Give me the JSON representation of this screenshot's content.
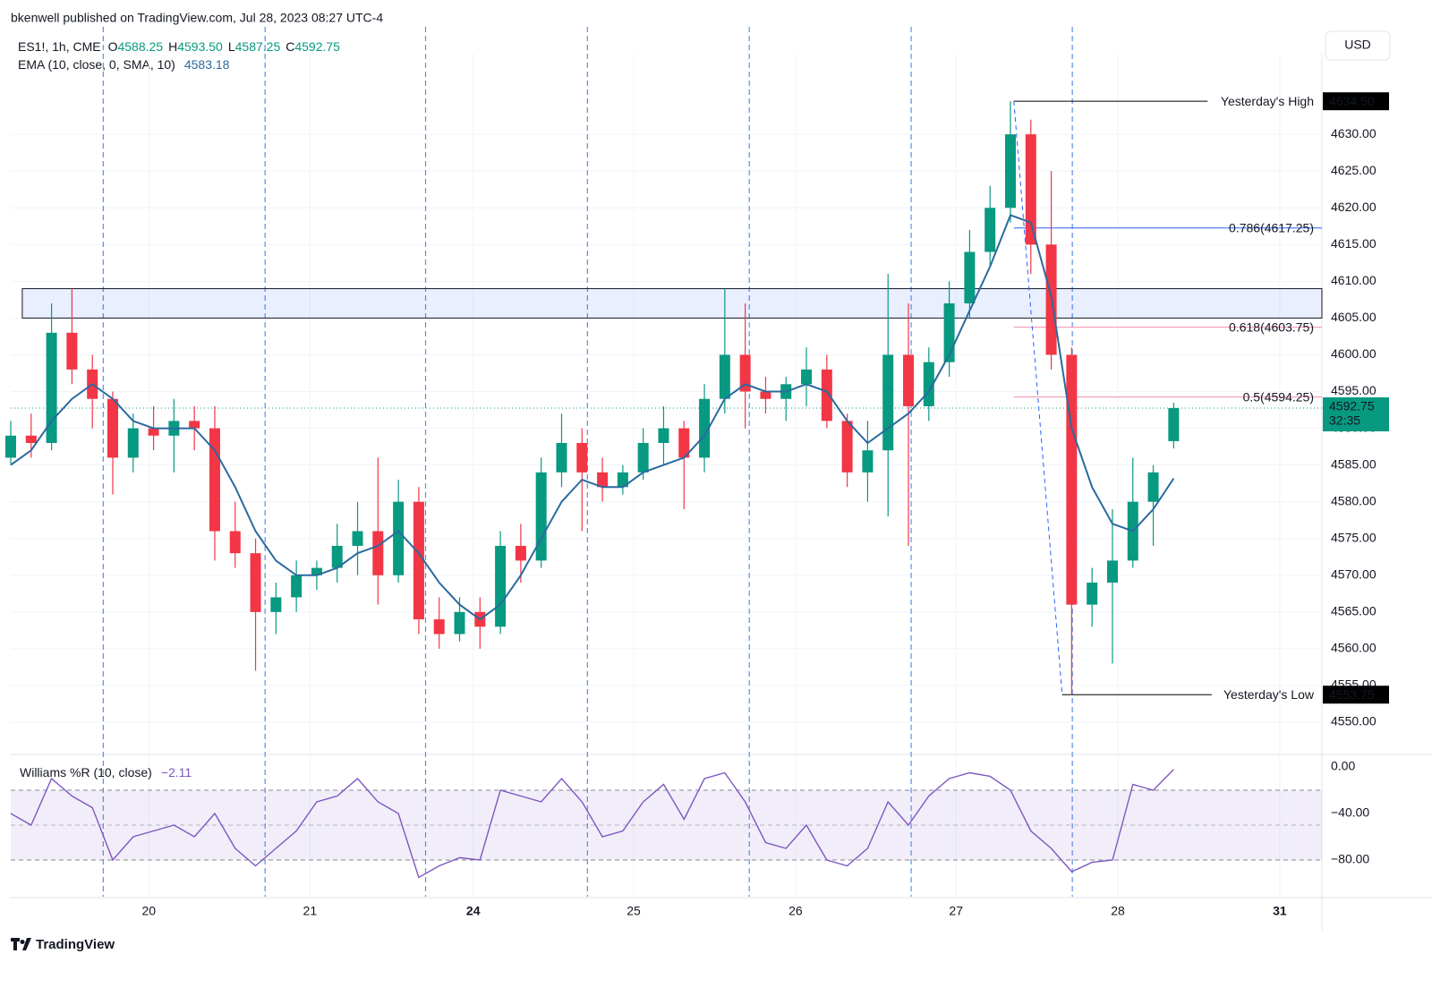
{
  "header": {
    "publisher": "bkenwell published on TradingView.com, Jul 28, 2023 08:27 UTC-4",
    "symbol": "ES1!, 1h, CME",
    "ohlc": [
      {
        "key": "O",
        "value": "4588.25"
      },
      {
        "key": "H",
        "value": "4593.50"
      },
      {
        "key": "L",
        "value": "4587.25"
      },
      {
        "key": "C",
        "value": "4592.75"
      }
    ],
    "currency": "USD",
    "brand": "TradingView"
  },
  "chart_data": [
    {
      "type": "candlestick",
      "x": [
        0,
        3,
        6,
        9,
        12,
        15,
        18,
        21,
        24,
        27,
        30,
        33,
        36,
        39,
        42,
        45,
        48,
        51,
        54,
        57,
        60,
        63,
        66,
        69,
        72,
        75,
        78,
        81,
        84,
        87,
        90,
        93,
        96,
        99,
        102,
        105,
        108,
        111,
        114,
        117,
        120,
        123,
        126,
        129,
        132,
        135,
        138,
        141,
        144,
        147,
        150,
        153,
        156,
        159,
        162,
        165,
        168,
        171
      ],
      "open": [
        4586,
        4589,
        4588,
        4603,
        4598,
        4594,
        4586,
        4590,
        4589,
        4591,
        4590,
        4576,
        4573,
        4565,
        4567,
        4570,
        4571,
        4574,
        4576,
        4570,
        4580,
        4564,
        4562,
        4565,
        4563,
        4574,
        4572,
        4584,
        4588,
        4584,
        4582,
        4584,
        4588,
        4590,
        4586,
        4594,
        4600,
        4595,
        4594,
        4596,
        4598,
        4591,
        4584,
        4587,
        4600,
        4593,
        4599,
        4607,
        4614,
        4620,
        4630,
        4615,
        4600,
        4566,
        4569,
        4572,
        4580,
        4588.25
      ],
      "high": [
        4591,
        4592,
        4607,
        4609,
        4600,
        4595,
        4592,
        4593,
        4594,
        4593,
        4593,
        4580,
        4575,
        4569,
        4572,
        4572,
        4577,
        4580,
        4586,
        4583,
        4582,
        4567,
        4567,
        4567,
        4576,
        4577,
        4586,
        4592,
        4590,
        4586,
        4585,
        4590,
        4593,
        4591,
        4596,
        4609,
        4607,
        4597,
        4597,
        4601,
        4600,
        4592,
        4591,
        4611,
        4607,
        4601,
        4610,
        4617,
        4623,
        4634.5,
        4632,
        4625,
        4601,
        4571,
        4579,
        4586,
        4585,
        4593.5
      ],
      "low": [
        4585,
        4586,
        4587,
        4596,
        4590,
        4581,
        4584,
        4587,
        4584,
        4587,
        4572,
        4571,
        4557,
        4562,
        4565,
        4568,
        4569,
        4570,
        4566,
        4569,
        4562,
        4560,
        4561,
        4560,
        4562,
        4569,
        4571,
        4582,
        4576,
        4580,
        4581,
        4583,
        4585,
        4579,
        4584,
        4592,
        4590,
        4592,
        4591,
        4593,
        4590,
        4582,
        4580,
        4578,
        4574,
        4591,
        4597,
        4605,
        4612,
        4618,
        4611,
        4598,
        4553.75,
        4563,
        4558,
        4571,
        4574,
        4587.25
      ],
      "close": [
        4589,
        4588,
        4603,
        4598,
        4594,
        4586,
        4590,
        4589,
        4591,
        4590,
        4576,
        4573,
        4565,
        4567,
        4570,
        4571,
        4574,
        4576,
        4570,
        4580,
        4564,
        4562,
        4565,
        4563,
        4574,
        4572,
        4584,
        4588,
        4584,
        4582,
        4584,
        4588,
        4590,
        4586,
        4594,
        4600,
        4595,
        4594,
        4596,
        4598,
        4591,
        4584,
        4587,
        4600,
        4593,
        4599,
        4607,
        4614,
        4620,
        4630,
        4615,
        4600,
        4566,
        4569,
        4572,
        4580,
        4584,
        4592.75
      ],
      "up_color": "#089981",
      "down_color": "#f23645",
      "series": [
        {
          "name": "EMA (10, close, 0, SMA, 10)",
          "color": "#2a6a9e",
          "values": [
            4585,
            4587,
            4591,
            4594,
            4596,
            4594,
            4591,
            4590,
            4590,
            4590,
            4587,
            4582,
            4576,
            4572,
            4570,
            4570,
            4571,
            4573,
            4574,
            4576,
            4573,
            4569,
            4566,
            4564,
            4566,
            4570,
            4575,
            4580,
            4583,
            4582,
            4582,
            4584,
            4585,
            4586,
            4589,
            4594,
            4596,
            4595,
            4595,
            4596,
            4595,
            4591,
            4588,
            4590,
            4592,
            4595,
            4600,
            4606,
            4612,
            4619,
            4618,
            4608,
            4590,
            4582,
            4577,
            4576,
            4579,
            4583.18
          ]
        }
      ],
      "xlim": [
        0,
        192.8
      ],
      "ylim": [
        4545.74,
        4640
      ],
      "yticks": [
        {
          "value": 4550,
          "label": "4550.00"
        },
        {
          "value": 4555,
          "label": "4555.00"
        },
        {
          "value": 4560,
          "label": "4560.00"
        },
        {
          "value": 4565,
          "label": "4565.00"
        },
        {
          "value": 4570,
          "label": "4570.00"
        },
        {
          "value": 4575,
          "label": "4575.00"
        },
        {
          "value": 4580,
          "label": "4580.00"
        },
        {
          "value": 4585,
          "label": "4585.00"
        },
        {
          "value": 4590,
          "label": "4590.00"
        },
        {
          "value": 4595,
          "label": "4595.00"
        },
        {
          "value": 4600,
          "label": "4600.00"
        },
        {
          "value": 4605,
          "label": "4605.00"
        },
        {
          "value": 4610,
          "label": "4610.00"
        },
        {
          "value": 4615,
          "label": "4615.00"
        },
        {
          "value": 4620,
          "label": "4620.00"
        },
        {
          "value": 4625,
          "label": "4625.00"
        },
        {
          "value": 4630,
          "label": "4630.00"
        }
      ],
      "xticks": [
        {
          "value": 20.3,
          "label": "20"
        },
        {
          "value": 44,
          "label": "21"
        },
        {
          "value": 68,
          "label": "24"
        },
        {
          "value": 91.6,
          "label": "25"
        },
        {
          "value": 115.4,
          "label": "26"
        },
        {
          "value": 139,
          "label": "27"
        },
        {
          "value": 162.8,
          "label": "28"
        },
        {
          "value": 186.6,
          "label": "31"
        }
      ],
      "bold_xticks": [
        2,
        7
      ],
      "session_breaks": [
        13.6,
        37.4,
        61,
        84.8,
        108.6,
        132.4,
        156.1
      ],
      "grid": true,
      "zone": {
        "from": 4605,
        "to": 4609,
        "start": 1.7,
        "fill": "rgba(41,98,255,0.1)"
      },
      "levels": [
        {
          "name": "Yesterday's High",
          "value": 4634.5,
          "label": "4634.50",
          "from": 147.5,
          "to": 176,
          "color": "#000000",
          "text_color": "#089981"
        },
        {
          "name": "Yesterday's Low",
          "value": 4553.75,
          "label": "4553.75",
          "from": 154.6,
          "to": 176.6,
          "color": "#000000",
          "text_color": "#089981"
        },
        {
          "name": "0.786(4617.25)",
          "value": 4617.25,
          "from": 147.5,
          "color": "#2962ff",
          "text_color": "#2962ff"
        },
        {
          "name": "0.618(4603.75)",
          "value": 4603.75,
          "from": 147.5,
          "color": "#f48fb1",
          "text_color": "#f48fb1"
        },
        {
          "name": "0.5(4594.25)",
          "value": 4594.25,
          "from": 147.5,
          "color": "#f48fb1",
          "text_color": "#f48fb1"
        }
      ],
      "fib_color": "#2962ff",
      "last_price": {
        "value": 4592.75,
        "label": "4592.75",
        "countdown": "32:35",
        "color": "#089981"
      }
    },
    {
      "type": "line",
      "title": "Williams %R (10, close)",
      "value_label": "−2.11",
      "x": [
        0,
        3,
        6,
        9,
        12,
        15,
        18,
        21,
        24,
        27,
        30,
        33,
        36,
        39,
        42,
        45,
        48,
        51,
        54,
        57,
        60,
        63,
        66,
        69,
        72,
        75,
        78,
        81,
        84,
        87,
        90,
        93,
        96,
        99,
        102,
        105,
        108,
        111,
        114,
        117,
        120,
        123,
        126,
        129,
        132,
        135,
        138,
        141,
        144,
        147,
        150,
        153,
        156,
        159,
        162,
        165,
        168,
        171
      ],
      "values": [
        -40,
        -50,
        -10,
        -25,
        -35,
        -80,
        -60,
        -55,
        -50,
        -60,
        -40,
        -70,
        -85,
        -70,
        -55,
        -30,
        -25,
        -10,
        -30,
        -40,
        -95,
        -85,
        -78,
        -80,
        -20,
        -25,
        -30,
        -10,
        -30,
        -60,
        -55,
        -30,
        -15,
        -45,
        -10,
        -5,
        -30,
        -65,
        -70,
        -50,
        -80,
        -85,
        -70,
        -30,
        -50,
        -25,
        -10,
        -5,
        -8,
        -20,
        -55,
        -70,
        -90,
        -82,
        -80,
        -15,
        -20,
        -2.11
      ],
      "color": "#7e57c2",
      "ylim": [
        -111.5,
        9.2
      ],
      "yticks": [
        {
          "value": 0,
          "label": "0.00"
        },
        {
          "value": -40,
          "label": "−40.00"
        },
        {
          "value": -80,
          "label": "−80.00"
        }
      ],
      "band": {
        "upper": -20,
        "middle": -50,
        "lower": -80,
        "fill": "rgba(126,87,194,0.1)"
      }
    }
  ]
}
